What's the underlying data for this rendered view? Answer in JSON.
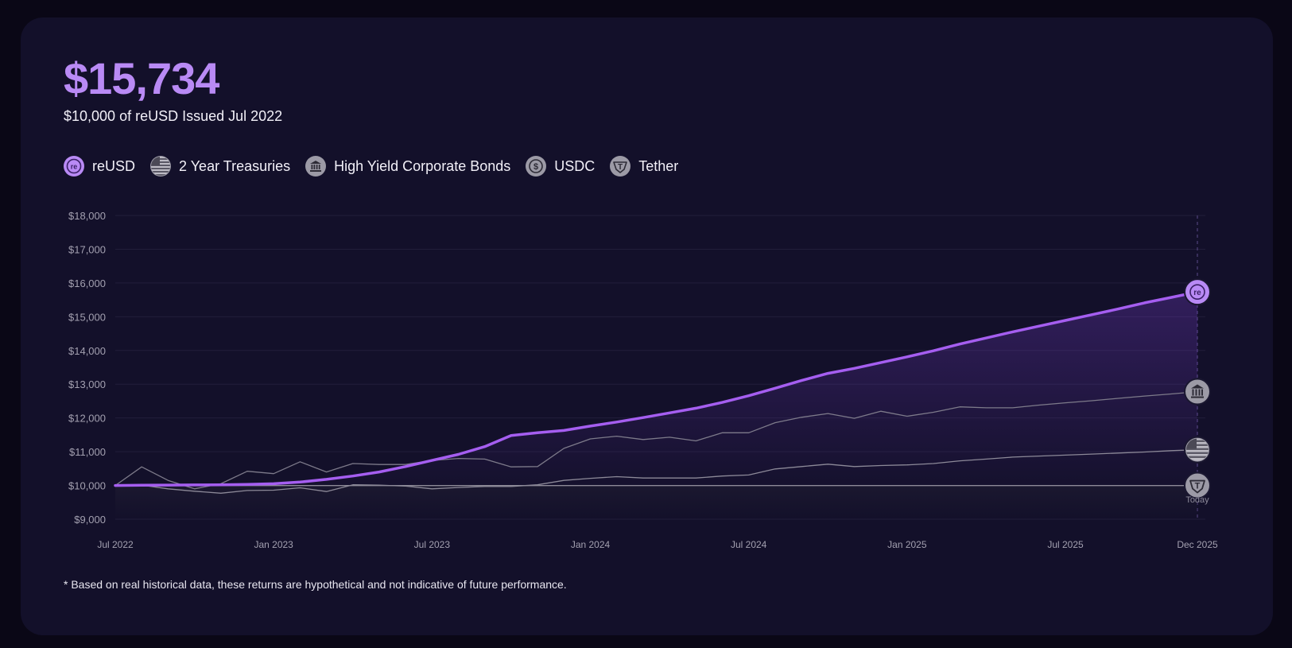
{
  "header": {
    "value": "$15,734",
    "subtitle": "$10,000 of reUSD Issued Jul 2022"
  },
  "legend": [
    {
      "label": "reUSD",
      "icon": "reusd-icon"
    },
    {
      "label": "2 Year Treasuries",
      "icon": "us-flag-icon"
    },
    {
      "label": "High Yield Corporate Bonds",
      "icon": "bank-icon"
    },
    {
      "label": "USDC",
      "icon": "dollar-coin-icon"
    },
    {
      "label": "Tether",
      "icon": "tether-icon"
    }
  ],
  "colors": {
    "accent": "#b98af5",
    "reusd_line": "#a55ef0",
    "grey_line": "#8a8794",
    "card_bg": "#13102a"
  },
  "footnote": "* Based on real historical data, these returns are hypothetical and not indicative of future performance.",
  "today_label": "Today",
  "chart_data": {
    "type": "line",
    "x": [
      "2022-07",
      "2022-08",
      "2022-09",
      "2022-10",
      "2022-11",
      "2022-12",
      "2023-01",
      "2023-02",
      "2023-03",
      "2023-04",
      "2023-05",
      "2023-06",
      "2023-07",
      "2023-08",
      "2023-09",
      "2023-10",
      "2023-11",
      "2023-12",
      "2024-01",
      "2024-02",
      "2024-03",
      "2024-04",
      "2024-05",
      "2024-06",
      "2024-07",
      "2024-08",
      "2024-09",
      "2024-10",
      "2024-11",
      "2024-12",
      "2025-01",
      "2025-02",
      "2025-03",
      "2025-04",
      "2025-05",
      "2025-06",
      "2025-07",
      "2025-08",
      "2025-09",
      "2025-10",
      "2025-11",
      "2025-12"
    ],
    "x_tick_labels": [
      "Jul 2022",
      "Jan 2023",
      "Jul 2023",
      "Jan 2024",
      "Jul 2024",
      "Jan 2025",
      "Jul 2025",
      "Dec 2025"
    ],
    "x_tick_values": [
      "2022-07",
      "2023-01",
      "2023-07",
      "2024-01",
      "2024-07",
      "2025-01",
      "2025-07",
      "2025-12"
    ],
    "y_tick_labels": [
      "$9,000",
      "$10,000",
      "$11,000",
      "$12,000",
      "$13,000",
      "$14,000",
      "$15,000",
      "$16,000",
      "$17,000",
      "$18,000"
    ],
    "ylim": [
      9000,
      18000
    ],
    "series": [
      {
        "name": "reUSD",
        "icon": "reusd-icon",
        "values": [
          10000,
          10005,
          10010,
          10015,
          10020,
          10030,
          10050,
          10100,
          10180,
          10280,
          10400,
          10560,
          10740,
          10920,
          11150,
          11480,
          11560,
          11630,
          11760,
          11880,
          12010,
          12150,
          12290,
          12460,
          12660,
          12880,
          13110,
          13320,
          13470,
          13640,
          13810,
          13990,
          14190,
          14370,
          14550,
          14720,
          14890,
          15060,
          15230,
          15410,
          15570,
          15734
        ]
      },
      {
        "name": "High Yield Corporate Bonds",
        "icon": "bank-icon",
        "values": [
          10000,
          10550,
          10150,
          9900,
          10050,
          10420,
          10350,
          10700,
          10400,
          10650,
          10620,
          10620,
          10740,
          10800,
          10780,
          10550,
          10560,
          11100,
          11380,
          11460,
          11360,
          11430,
          11320,
          11560,
          11560,
          11860,
          12020,
          12130,
          11990,
          12200,
          12050,
          12170,
          12330,
          12300,
          12300,
          12380,
          12450,
          12510,
          12580,
          12650,
          12710,
          12780
        ]
      },
      {
        "name": "2 Year Treasuries",
        "icon": "us-flag-icon",
        "values": [
          10000,
          10010,
          9900,
          9830,
          9770,
          9850,
          9860,
          9930,
          9820,
          10020,
          10010,
          9980,
          9900,
          9940,
          9970,
          9970,
          10020,
          10150,
          10210,
          10260,
          10220,
          10220,
          10220,
          10280,
          10310,
          10490,
          10560,
          10630,
          10560,
          10590,
          10610,
          10650,
          10730,
          10780,
          10840,
          10870,
          10900,
          10930,
          10960,
          10990,
          11030,
          11060
        ]
      },
      {
        "name": "USDC",
        "icon": "dollar-coin-icon",
        "values": [
          10000,
          10000,
          10000,
          10000,
          10000,
          10000,
          10000,
          10000,
          10000,
          10000,
          10000,
          10000,
          10000,
          10000,
          10000,
          10000,
          10000,
          10000,
          10000,
          10000,
          10000,
          10000,
          10000,
          10000,
          10000,
          10000,
          10000,
          10000,
          10000,
          10000,
          10000,
          10000,
          10000,
          10000,
          10000,
          10000,
          10000,
          10000,
          10000,
          10000,
          10000,
          10000
        ]
      },
      {
        "name": "Tether",
        "icon": "tether-icon",
        "values": [
          10000,
          10000,
          10000,
          10000,
          10000,
          10000,
          10000,
          10000,
          10000,
          10000,
          10000,
          10000,
          10000,
          10000,
          10000,
          10000,
          10000,
          10000,
          10000,
          10000,
          10000,
          10000,
          10000,
          10000,
          10000,
          10000,
          10000,
          10000,
          10000,
          10000,
          10000,
          10000,
          10000,
          10000,
          10000,
          10000,
          10000,
          10000,
          10000,
          10000,
          10000,
          10000
        ]
      }
    ],
    "grid": true,
    "legend_position": "top-left"
  }
}
